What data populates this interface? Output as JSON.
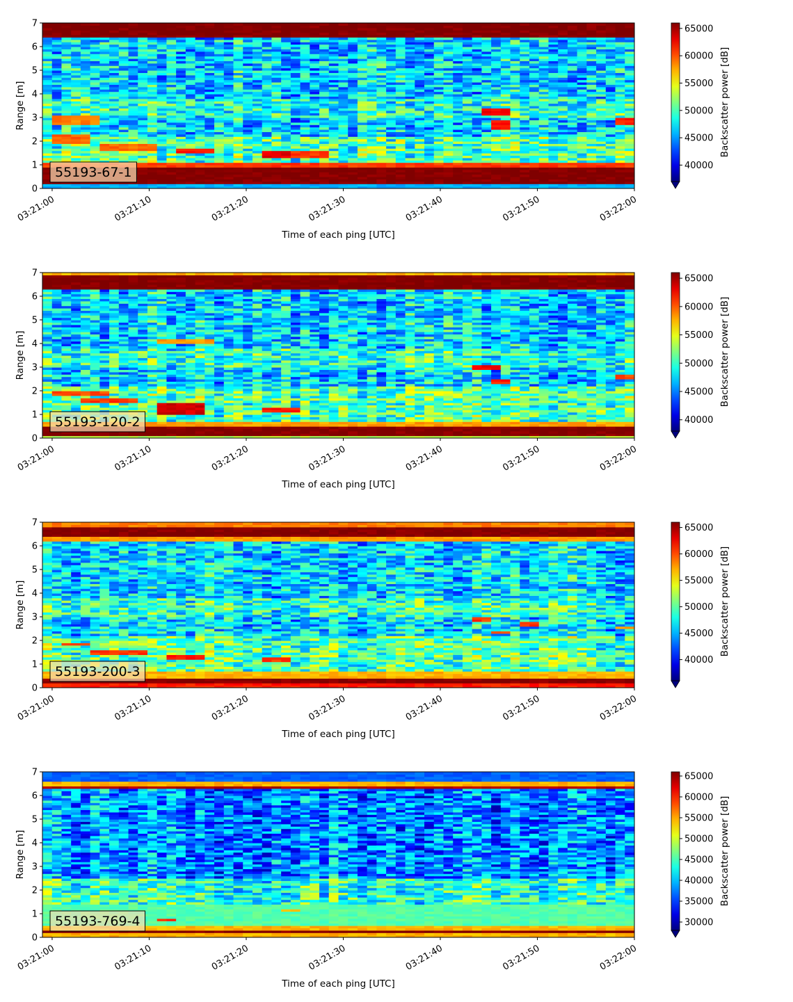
{
  "chart_data": [
    {
      "type": "heatmap",
      "label": "55193-67-1",
      "xlabel": "Time of each ping [UTC]",
      "ylabel": "Range [m]",
      "colorbar_label": "Backscatter power [dB]",
      "colormap": "jet",
      "colorbar_extend": "min",
      "x_ticks": [
        "03:21:00",
        "03:21:10",
        "03:21:20",
        "03:21:30",
        "03:21:40",
        "03:21:50",
        "03:22:00"
      ],
      "xlim": [
        "03:20:59",
        "03:22:00"
      ],
      "y_ticks": [
        0,
        1,
        2,
        3,
        4,
        5,
        6,
        7
      ],
      "ylim": [
        0,
        7
      ],
      "clim": [
        37000,
        66000
      ],
      "colorbar_ticks": [
        40000,
        45000,
        50000,
        55000,
        60000,
        65000
      ],
      "bands": [
        {
          "y": [
            0.0,
            0.25
          ],
          "level": 0.3
        },
        {
          "y": [
            0.25,
            0.9
          ],
          "level": 1.0
        },
        {
          "y": [
            0.9,
            1.15
          ],
          "level": 0.82
        },
        {
          "y": [
            6.4,
            7.0
          ],
          "level": 1.0
        }
      ],
      "features": [
        {
          "t": [
            "03:21:00",
            "03:21:04"
          ],
          "y": [
            2.7,
            3.1
          ],
          "level": 0.75
        },
        {
          "t": [
            "03:21:00",
            "03:21:03"
          ],
          "y": [
            1.9,
            2.3
          ],
          "level": 0.78
        },
        {
          "t": [
            "03:21:05",
            "03:21:10"
          ],
          "y": [
            1.6,
            1.9
          ],
          "level": 0.77
        },
        {
          "t": [
            "03:21:13",
            "03:21:16"
          ],
          "y": [
            1.5,
            1.75
          ],
          "level": 0.85
        },
        {
          "t": [
            "03:21:22",
            "03:21:25"
          ],
          "y": [
            1.3,
            1.65
          ],
          "level": 0.9
        },
        {
          "t": [
            "03:21:25",
            "03:21:28"
          ],
          "y": [
            1.35,
            1.6
          ],
          "level": 0.82
        },
        {
          "t": [
            "03:21:44",
            "03:21:46"
          ],
          "y": [
            3.1,
            3.4
          ],
          "level": 0.88
        },
        {
          "t": [
            "03:21:45",
            "03:21:46"
          ],
          "y": [
            2.5,
            2.9
          ],
          "level": 0.85
        },
        {
          "t": [
            "03:21:58",
            "03:21:59"
          ],
          "y": [
            2.7,
            3.0
          ],
          "level": 0.85
        }
      ]
    },
    {
      "type": "heatmap",
      "label": "55193-120-2",
      "xlabel": "Time of each ping [UTC]",
      "ylabel": "Range [m]",
      "colorbar_label": "Backscatter power [dB]",
      "colormap": "jet",
      "colorbar_extend": "min",
      "x_ticks": [
        "03:21:00",
        "03:21:10",
        "03:21:20",
        "03:21:30",
        "03:21:40",
        "03:21:50",
        "03:22:00"
      ],
      "xlim": [
        "03:20:59",
        "03:22:00"
      ],
      "y_ticks": [
        0,
        1,
        2,
        3,
        4,
        5,
        6,
        7
      ],
      "ylim": [
        0,
        7
      ],
      "clim": [
        38000,
        66000
      ],
      "colorbar_ticks": [
        40000,
        45000,
        50000,
        55000,
        60000,
        65000
      ],
      "bands": [
        {
          "y": [
            0.0,
            0.15
          ],
          "level": 0.55
        },
        {
          "y": [
            0.15,
            0.55
          ],
          "level": 1.0
        },
        {
          "y": [
            0.55,
            0.75
          ],
          "level": 0.72
        },
        {
          "y": [
            6.3,
            6.9
          ],
          "level": 1.0
        },
        {
          "y": [
            6.9,
            7.0
          ],
          "level": 0.7
        }
      ],
      "features": [
        {
          "t": [
            "03:21:00",
            "03:21:05"
          ],
          "y": [
            1.8,
            2.0
          ],
          "level": 0.8
        },
        {
          "t": [
            "03:21:03",
            "03:21:08"
          ],
          "y": [
            1.5,
            1.7
          ],
          "level": 0.82
        },
        {
          "t": [
            "03:21:11",
            "03:21:15"
          ],
          "y": [
            1.05,
            1.55
          ],
          "level": 0.92
        },
        {
          "t": [
            "03:21:11",
            "03:21:16"
          ],
          "y": [
            4.0,
            4.2
          ],
          "level": 0.72
        },
        {
          "t": [
            "03:21:22",
            "03:21:25"
          ],
          "y": [
            1.15,
            1.35
          ],
          "level": 0.85
        },
        {
          "t": [
            "03:21:43",
            "03:21:45"
          ],
          "y": [
            2.9,
            3.1
          ],
          "level": 0.88
        },
        {
          "t": [
            "03:21:45",
            "03:21:46"
          ],
          "y": [
            2.3,
            2.5
          ],
          "level": 0.85
        },
        {
          "t": [
            "03:21:58",
            "03:21:59"
          ],
          "y": [
            2.5,
            2.7
          ],
          "level": 0.8
        }
      ]
    },
    {
      "type": "heatmap",
      "label": "55193-200-3",
      "xlabel": "Time of each ping [UTC]",
      "ylabel": "Range [m]",
      "colorbar_label": "Backscatter power [dB]",
      "colormap": "jet",
      "colorbar_extend": "min",
      "x_ticks": [
        "03:21:00",
        "03:21:10",
        "03:21:20",
        "03:21:30",
        "03:21:40",
        "03:21:50",
        "03:22:00"
      ],
      "xlim": [
        "03:20:59",
        "03:22:00"
      ],
      "y_ticks": [
        0,
        1,
        2,
        3,
        4,
        5,
        6,
        7
      ],
      "ylim": [
        0,
        7
      ],
      "clim": [
        36000,
        66000
      ],
      "colorbar_ticks": [
        40000,
        45000,
        50000,
        55000,
        60000,
        65000
      ],
      "bands": [
        {
          "y": [
            0.0,
            0.2
          ],
          "level": 0.85
        },
        {
          "y": [
            0.2,
            0.45
          ],
          "level": 1.0
        },
        {
          "y": [
            0.45,
            0.75
          ],
          "level": 0.7
        },
        {
          "y": [
            6.4,
            6.8
          ],
          "level": 1.0
        },
        {
          "y": [
            6.8,
            7.0
          ],
          "level": 0.75
        },
        {
          "y": [
            6.25,
            6.4
          ],
          "level": 0.72
        }
      ],
      "features": [
        {
          "t": [
            "03:21:01",
            "03:21:03"
          ],
          "y": [
            1.8,
            1.95
          ],
          "level": 0.8
        },
        {
          "t": [
            "03:21:04",
            "03:21:09"
          ],
          "y": [
            1.4,
            1.6
          ],
          "level": 0.82
        },
        {
          "t": [
            "03:21:12",
            "03:21:15"
          ],
          "y": [
            1.2,
            1.45
          ],
          "level": 0.85
        },
        {
          "t": [
            "03:21:22",
            "03:21:24"
          ],
          "y": [
            1.1,
            1.3
          ],
          "level": 0.82
        },
        {
          "t": [
            "03:21:43",
            "03:21:44"
          ],
          "y": [
            2.85,
            3.0
          ],
          "level": 0.82
        },
        {
          "t": [
            "03:21:45",
            "03:21:46"
          ],
          "y": [
            2.3,
            2.45
          ],
          "level": 0.8
        },
        {
          "t": [
            "03:21:48",
            "03:21:49"
          ],
          "y": [
            2.6,
            2.8
          ],
          "level": 0.82
        },
        {
          "t": [
            "03:21:58",
            "03:21:59"
          ],
          "y": [
            2.5,
            2.65
          ],
          "level": 0.72
        }
      ]
    },
    {
      "type": "heatmap",
      "label": "55193-769-4",
      "xlabel": "Time of each ping [UTC]",
      "ylabel": "Range [m]",
      "colorbar_label": "Backscatter power [dB]",
      "colormap": "jet",
      "colorbar_extend": "min",
      "x_ticks": [
        "03:21:00",
        "03:21:10",
        "03:21:20",
        "03:21:30",
        "03:21:40",
        "03:21:50",
        "03:22:00"
      ],
      "xlim": [
        "03:20:59",
        "03:22:00"
      ],
      "y_ticks": [
        0,
        1,
        2,
        3,
        4,
        5,
        6,
        7
      ],
      "ylim": [
        0,
        7
      ],
      "clim": [
        28000,
        66000
      ],
      "colorbar_ticks": [
        30000,
        35000,
        40000,
        45000,
        50000,
        55000,
        60000,
        65000
      ],
      "bands": [
        {
          "y": [
            0.0,
            0.2
          ],
          "level": 0.7
        },
        {
          "y": [
            0.2,
            0.35
          ],
          "level": 1.0
        },
        {
          "y": [
            0.35,
            0.5
          ],
          "level": 0.7
        },
        {
          "y": [
            0.5,
            1.4
          ],
          "level": 0.46
        },
        {
          "y": [
            6.3,
            6.45
          ],
          "level": 0.95
        },
        {
          "y": [
            6.45,
            6.6
          ],
          "level": 0.7
        },
        {
          "y": [
            6.6,
            7.0
          ],
          "level": 0.22
        }
      ],
      "features": [
        {
          "t": [
            "03:21:11",
            "03:21:12"
          ],
          "y": [
            0.7,
            0.85
          ],
          "level": 0.82
        },
        {
          "t": [
            "03:21:24",
            "03:21:25"
          ],
          "y": [
            1.1,
            1.25
          ],
          "level": 0.7
        }
      ]
    }
  ]
}
